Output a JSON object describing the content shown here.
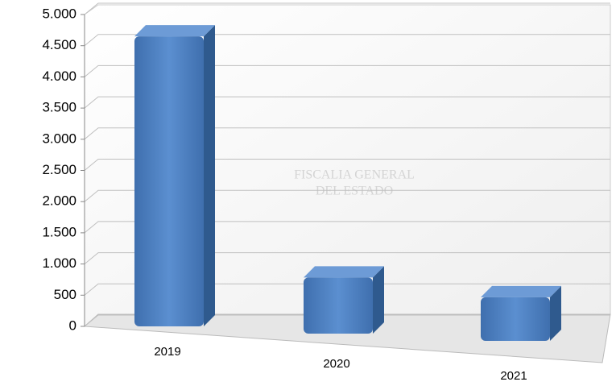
{
  "chart_data": {
    "type": "bar",
    "categories": [
      "2019",
      "2020",
      "2021"
    ],
    "values": [
      4650,
      900,
      700
    ],
    "color": "#4f81bd",
    "ylim": [
      0,
      5000
    ],
    "yticks": [
      0,
      500,
      {
        "value": 1000,
        "label": "1.000"
      },
      {
        "value": 1500,
        "label": "1.500"
      },
      {
        "value": 2000,
        "label": "2.000"
      },
      {
        "value": 2500,
        "label": "2.500"
      },
      {
        "value": 3000,
        "label": "3.000"
      },
      {
        "value": 3500,
        "label": "3.500"
      },
      {
        "value": 4000,
        "label": "4.000"
      },
      {
        "value": 4500,
        "label": "4.500"
      },
      {
        "value": 5000,
        "label": "5.000"
      }
    ],
    "grid": true,
    "watermark": [
      "FISCALIA GENERAL",
      "DEL ESTADO"
    ]
  }
}
